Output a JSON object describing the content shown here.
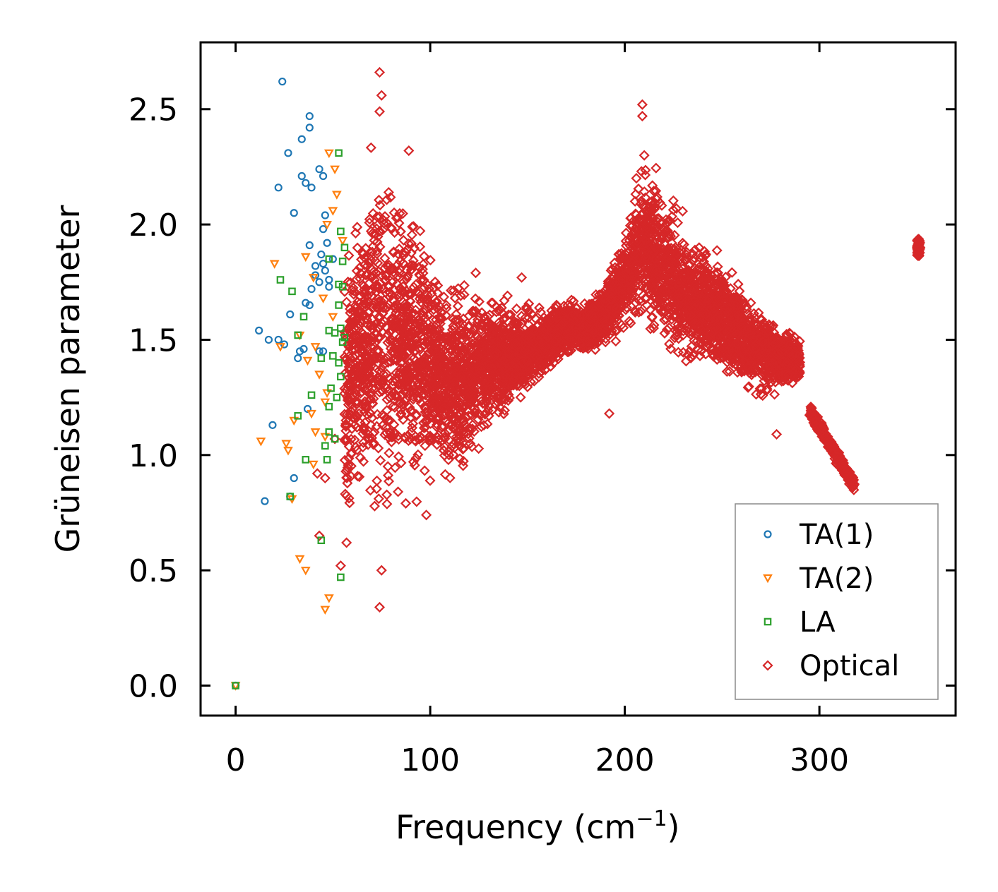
{
  "chart_data": {
    "type": "scatter",
    "title": "",
    "xlabel": "Frequency (cm",
    "xlabel_sup": "−1",
    "xlabel_close": ")",
    "ylabel": "Grüneisen parameter",
    "xlim": [
      -18,
      370
    ],
    "ylim": [
      -0.13,
      2.79
    ],
    "xticks": [
      0,
      100,
      200,
      300
    ],
    "xtick_labels": [
      "0",
      "100",
      "200",
      "300"
    ],
    "yticks": [
      0.0,
      0.5,
      1.0,
      1.5,
      2.0,
      2.5
    ],
    "ytick_labels": [
      "0.0",
      "0.5",
      "1.0",
      "1.5",
      "2.0",
      "2.5"
    ],
    "legend_position": "lower-right",
    "series": [
      {
        "name": "TA(1)",
        "marker": "circle",
        "color": "#1f77b4",
        "points": [
          [
            0,
            0
          ],
          [
            24,
            2.62
          ],
          [
            38,
            2.47
          ],
          [
            38,
            2.42
          ],
          [
            34,
            2.37
          ],
          [
            27,
            2.31
          ],
          [
            43,
            2.24
          ],
          [
            34,
            2.21
          ],
          [
            45,
            2.21
          ],
          [
            36,
            2.18
          ],
          [
            22,
            2.16
          ],
          [
            39,
            2.16
          ],
          [
            30,
            2.05
          ],
          [
            46,
            2.04
          ],
          [
            45,
            1.98
          ],
          [
            47,
            1.92
          ],
          [
            38,
            1.91
          ],
          [
            44,
            1.87
          ],
          [
            50,
            1.85
          ],
          [
            45,
            1.83
          ],
          [
            41,
            1.82
          ],
          [
            46,
            1.8
          ],
          [
            41,
            1.78
          ],
          [
            48,
            1.76
          ],
          [
            43,
            1.75
          ],
          [
            39,
            1.72
          ],
          [
            48,
            1.73
          ],
          [
            36,
            1.66
          ],
          [
            38,
            1.65
          ],
          [
            28,
            1.61
          ],
          [
            12,
            1.54
          ],
          [
            17,
            1.5
          ],
          [
            22,
            1.5
          ],
          [
            25,
            1.48
          ],
          [
            35,
            1.46
          ],
          [
            33,
            1.45
          ],
          [
            45,
            1.45
          ],
          [
            43,
            1.45
          ],
          [
            32,
            1.42
          ],
          [
            37,
            1.2
          ],
          [
            19,
            1.13
          ],
          [
            15,
            0.8
          ],
          [
            30,
            0.9
          ],
          [
            28,
            0.82
          ]
        ]
      },
      {
        "name": "TA(2)",
        "marker": "triangle-down",
        "color": "#ff7f0e",
        "points": [
          [
            0,
            0
          ],
          [
            48,
            2.31
          ],
          [
            51,
            2.24
          ],
          [
            52,
            2.13
          ],
          [
            50,
            2.06
          ],
          [
            47,
            2.0
          ],
          [
            55,
            1.93
          ],
          [
            20,
            1.83
          ],
          [
            36,
            1.86
          ],
          [
            40,
            1.77
          ],
          [
            45,
            1.68
          ],
          [
            50,
            1.6
          ],
          [
            33,
            1.52
          ],
          [
            41,
            1.47
          ],
          [
            23,
            1.47
          ],
          [
            37,
            1.41
          ],
          [
            43,
            1.35
          ],
          [
            47,
            1.27
          ],
          [
            46,
            1.23
          ],
          [
            39,
            1.18
          ],
          [
            30,
            1.15
          ],
          [
            41,
            1.1
          ],
          [
            46,
            1.08
          ],
          [
            13,
            1.06
          ],
          [
            26,
            1.05
          ],
          [
            27,
            1.02
          ],
          [
            40,
            0.96
          ],
          [
            33,
            0.55
          ],
          [
            36,
            0.5
          ],
          [
            48,
            0.38
          ],
          [
            46,
            0.33
          ],
          [
            29,
            0.81
          ]
        ]
      },
      {
        "name": "LA",
        "marker": "square",
        "color": "#2ca02c",
        "points": [
          [
            0,
            0
          ],
          [
            53,
            2.31
          ],
          [
            54,
            1.97
          ],
          [
            56,
            1.9
          ],
          [
            48,
            1.85
          ],
          [
            55,
            1.84
          ],
          [
            23,
            1.76
          ],
          [
            29,
            1.71
          ],
          [
            53,
            1.74
          ],
          [
            55,
            1.73
          ],
          [
            53,
            1.65
          ],
          [
            35,
            1.6
          ],
          [
            54,
            1.55
          ],
          [
            48,
            1.54
          ],
          [
            51,
            1.53
          ],
          [
            56,
            1.51
          ],
          [
            55,
            1.49
          ],
          [
            32,
            1.52
          ],
          [
            44,
            1.42
          ],
          [
            50,
            1.43
          ],
          [
            53,
            1.4
          ],
          [
            54,
            1.34
          ],
          [
            49,
            1.29
          ],
          [
            52,
            1.25
          ],
          [
            39,
            1.26
          ],
          [
            48,
            1.21
          ],
          [
            32,
            1.17
          ],
          [
            48,
            1.1
          ],
          [
            51,
            1.07
          ],
          [
            46,
            1.04
          ],
          [
            36,
            0.98
          ],
          [
            47,
            0.98
          ],
          [
            28,
            0.82
          ],
          [
            44,
            0.63
          ],
          [
            54,
            0.47
          ]
        ]
      },
      {
        "name": "Optical",
        "marker": "diamond",
        "color": "#d62728",
        "points": [],
        "generated_envelope": [
          [
            56,
            1.3,
            0.8
          ],
          [
            62,
            1.4,
            0.8
          ],
          [
            70,
            1.5,
            1.0
          ],
          [
            75,
            1.55,
            1.1
          ],
          [
            80,
            1.5,
            1.0
          ],
          [
            90,
            1.45,
            0.85
          ],
          [
            100,
            1.38,
            0.65
          ],
          [
            110,
            1.32,
            0.55
          ],
          [
            120,
            1.35,
            0.55
          ],
          [
            130,
            1.4,
            0.4
          ],
          [
            140,
            1.43,
            0.3
          ],
          [
            150,
            1.45,
            0.25
          ],
          [
            160,
            1.5,
            0.2
          ],
          [
            170,
            1.55,
            0.15
          ],
          [
            180,
            1.55,
            0.15
          ],
          [
            190,
            1.62,
            0.2
          ],
          [
            200,
            1.75,
            0.3
          ],
          [
            205,
            1.85,
            0.4
          ],
          [
            210,
            1.95,
            0.5
          ],
          [
            220,
            1.8,
            0.45
          ],
          [
            230,
            1.7,
            0.4
          ],
          [
            240,
            1.65,
            0.35
          ],
          [
            250,
            1.6,
            0.35
          ],
          [
            260,
            1.52,
            0.3
          ],
          [
            270,
            1.45,
            0.28
          ],
          [
            280,
            1.42,
            0.2
          ],
          [
            290,
            1.4,
            0.15
          ]
        ],
        "tails": [
          {
            "x_from": 295,
            "x_to": 318,
            "y_from": 1.19,
            "y_to": 0.87
          },
          {
            "x_center": 351,
            "y_center": 1.9,
            "spread": 0.06
          }
        ],
        "outliers": [
          [
            74,
            2.66
          ],
          [
            75,
            2.56
          ],
          [
            74,
            2.49
          ],
          [
            89,
            2.32
          ],
          [
            209,
            2.52
          ],
          [
            209,
            2.47
          ],
          [
            74,
            0.34
          ],
          [
            75,
            0.5
          ],
          [
            98,
            0.74
          ],
          [
            147,
            1.77
          ],
          [
            192,
            1.18
          ],
          [
            278,
            1.09
          ],
          [
            54,
            0.52
          ],
          [
            43,
            0.65
          ],
          [
            57,
            0.62
          ],
          [
            51,
            1.07
          ],
          [
            42,
            0.92
          ],
          [
            46,
            0.9
          ]
        ]
      }
    ]
  }
}
